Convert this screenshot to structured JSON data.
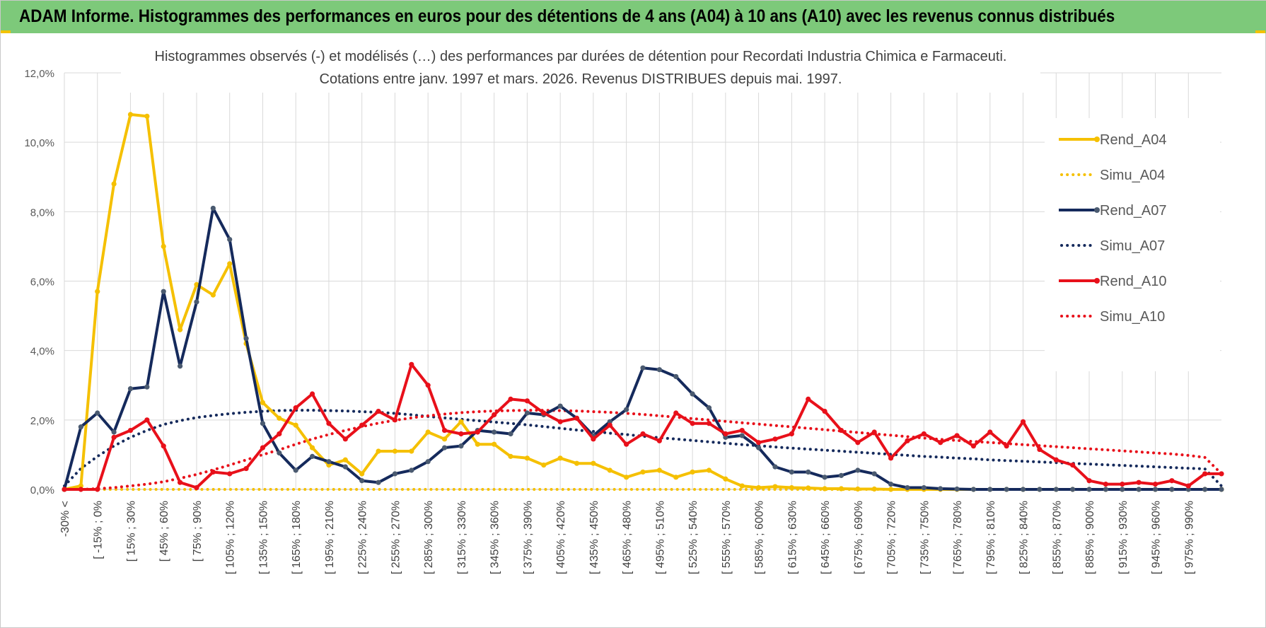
{
  "header": {
    "title": "ADAM Informe. Histogrammes des performances en euros pour des détentions de 4 ans (A04) à 10 ans (A10) avec les revenus connus distribués"
  },
  "colors": {
    "banner": "#7dc97a",
    "a04": "#f5c000",
    "a07": "#152a5c",
    "a10": "#e8101a",
    "grid": "#d9d9d9"
  },
  "chart_data": {
    "type": "line",
    "title": "Histogrammes observés (-) et modélisés (…) des performances par durées de détention pour Recordati Industria Chimica e Farmaceuti.",
    "subtitle": "Cotations entre janv. 1997 et mars. 2026.  Revenus DISTRIBUES depuis mai. 1997.",
    "xlabel": "",
    "ylabel": "",
    "ylim": [
      0,
      12
    ],
    "y_ticks": [
      "0,0%",
      "2,0%",
      "4,0%",
      "6,0%",
      "8,0%",
      "10,0%",
      "12,0%"
    ],
    "grid": true,
    "legend_position": "right",
    "x_tick_labels": [
      "-30% <",
      "[ -15% ; 0%",
      "[ 15% ; 30%",
      "[ 45% ; 60%",
      "[ 75% ; 90%",
      "[ 105% ; 120%",
      "[ 135% ; 150%",
      "[ 165% ; 180%",
      "[ 195% ; 210%",
      "[ 225% ; 240%",
      "[ 255% ; 270%",
      "[ 285% ; 300%",
      "[ 315% ; 330%",
      "[ 345% ; 360%",
      "[ 375% ; 390%",
      "[ 405% ; 420%",
      "[ 435% ; 450%",
      "[ 465% ; 480%",
      "[ 495% ; 510%",
      "[ 525% ; 540%",
      "[ 555% ; 570%",
      "[ 585% ; 600%",
      "[ 615% ; 630%",
      "[ 645% ; 660%",
      "[ 675% ; 690%",
      "[ 705% ; 720%",
      "[ 735% ; 750%",
      "[ 765% ; 780%",
      "[ 795% ; 810%",
      "[ 825% ; 840%",
      "[ 855% ; 870%",
      "[ 885% ; 900%",
      "[ 915% ; 930%",
      "[ 945% ; 960%",
      "[ 975% ; 990%"
    ],
    "series": [
      {
        "name": "Rend_A04",
        "style": "solid",
        "color": "#f5c000",
        "values": [
          0,
          0.1,
          5.7,
          8.8,
          10.8,
          10.75,
          7.0,
          4.6,
          5.9,
          5.6,
          6.5,
          4.2,
          2.5,
          2.05,
          1.85,
          1.2,
          0.7,
          0.85,
          0.45,
          1.1,
          1.1,
          1.1,
          1.65,
          1.45,
          1.95,
          1.3,
          1.3,
          0.95,
          0.9,
          0.7,
          0.9,
          0.75,
          0.75,
          0.55,
          0.35,
          0.5,
          0.55,
          0.35,
          0.5,
          0.55,
          0.3,
          0.1,
          0.05,
          0.08,
          0.05,
          0.04,
          0.02,
          0.02,
          0.01,
          0.01,
          0,
          0,
          0,
          0,
          0,
          0,
          0,
          0,
          0,
          0,
          0,
          0,
          0,
          0,
          0,
          0,
          0,
          0,
          0,
          0,
          0
        ]
      },
      {
        "name": "Simu_A04",
        "style": "dotted",
        "color": "#f5c000",
        "values": [
          0,
          0,
          0,
          0,
          0,
          0,
          0,
          0,
          0,
          0,
          0,
          0,
          0,
          0,
          0,
          0,
          0,
          0,
          0,
          0,
          0,
          0,
          0,
          0,
          0,
          0,
          0,
          0,
          0,
          0,
          0,
          0,
          0,
          0,
          0,
          0,
          0,
          0,
          0,
          0,
          0,
          0,
          0,
          0,
          0,
          0,
          0,
          0,
          0,
          0,
          0,
          0,
          0,
          0,
          0,
          0,
          0,
          0,
          0,
          0,
          0,
          0,
          0,
          0,
          0,
          0,
          0,
          0,
          0,
          0,
          0
        ]
      },
      {
        "name": "Rend_A07",
        "style": "solid",
        "color": "#152a5c",
        "values": [
          0,
          1.8,
          2.2,
          1.65,
          2.9,
          2.95,
          5.7,
          3.55,
          5.4,
          8.1,
          7.2,
          4.35,
          1.9,
          1.05,
          0.55,
          0.95,
          0.8,
          0.65,
          0.25,
          0.2,
          0.45,
          0.55,
          0.8,
          1.2,
          1.25,
          1.7,
          1.65,
          1.6,
          2.2,
          2.15,
          2.4,
          2.05,
          1.55,
          1.95,
          2.3,
          3.5,
          3.45,
          3.25,
          2.75,
          2.35,
          1.5,
          1.55,
          1.2,
          0.65,
          0.5,
          0.5,
          0.35,
          0.4,
          0.55,
          0.45,
          0.15,
          0.05,
          0.05,
          0.02,
          0.01,
          0,
          0,
          0,
          0,
          0,
          0,
          0,
          0,
          0,
          0,
          0,
          0,
          0,
          0,
          0,
          0
        ]
      },
      {
        "name": "Simu_A07",
        "style": "dotted",
        "color": "#152a5c",
        "values": [
          0.1,
          0.6,
          0.95,
          1.25,
          1.5,
          1.7,
          1.87,
          1.98,
          2.07,
          2.13,
          2.18,
          2.22,
          2.25,
          2.27,
          2.28,
          2.28,
          2.27,
          2.26,
          2.24,
          2.22,
          2.19,
          2.15,
          2.1,
          2.06,
          2.02,
          1.98,
          1.94,
          1.9,
          1.86,
          1.81,
          1.76,
          1.71,
          1.67,
          1.62,
          1.58,
          1.53,
          1.49,
          1.45,
          1.41,
          1.37,
          1.33,
          1.29,
          1.26,
          1.22,
          1.19,
          1.16,
          1.13,
          1.1,
          1.07,
          1.04,
          1.01,
          0.98,
          0.95,
          0.93,
          0.9,
          0.88,
          0.85,
          0.83,
          0.81,
          0.79,
          0.77,
          0.75,
          0.73,
          0.71,
          0.69,
          0.67,
          0.65,
          0.63,
          0.61,
          0.59,
          0.1
        ]
      },
      {
        "name": "Rend_A10",
        "style": "solid",
        "color": "#e8101a",
        "values": [
          0,
          0,
          0,
          1.5,
          1.7,
          2.0,
          1.25,
          0.2,
          0.05,
          0.5,
          0.45,
          0.6,
          1.2,
          1.6,
          2.35,
          2.75,
          1.9,
          1.45,
          1.85,
          2.25,
          2.0,
          3.6,
          3.0,
          1.7,
          1.6,
          1.65,
          2.15,
          2.6,
          2.55,
          2.2,
          1.95,
          2.05,
          1.45,
          1.85,
          1.3,
          1.6,
          1.4,
          2.2,
          1.9,
          1.9,
          1.6,
          1.7,
          1.35,
          1.45,
          1.6,
          2.6,
          2.25,
          1.7,
          1.35,
          1.65,
          0.9,
          1.4,
          1.6,
          1.35,
          1.55,
          1.25,
          1.65,
          1.25,
          1.95,
          1.15,
          0.85,
          0.7,
          0.25,
          0.15,
          0.15,
          0.2,
          0.15,
          0.25,
          0.1,
          0.45,
          0.45
        ]
      },
      {
        "name": "Simu_A10",
        "style": "dotted",
        "color": "#e8101a",
        "values": [
          0,
          0,
          0.02,
          0.05,
          0.1,
          0.15,
          0.22,
          0.32,
          0.43,
          0.56,
          0.7,
          0.85,
          1.0,
          1.14,
          1.3,
          1.45,
          1.58,
          1.7,
          1.81,
          1.91,
          1.99,
          2.06,
          2.12,
          2.17,
          2.21,
          2.24,
          2.26,
          2.27,
          2.28,
          2.28,
          2.27,
          2.26,
          2.24,
          2.22,
          2.19,
          2.16,
          2.12,
          2.08,
          2.04,
          2.0,
          1.96,
          1.92,
          1.88,
          1.84,
          1.8,
          1.76,
          1.72,
          1.68,
          1.64,
          1.6,
          1.56,
          1.52,
          1.48,
          1.44,
          1.41,
          1.38,
          1.35,
          1.32,
          1.29,
          1.26,
          1.23,
          1.2,
          1.17,
          1.14,
          1.11,
          1.08,
          1.05,
          1.02,
          0.98,
          0.92,
          0.45
        ]
      }
    ]
  }
}
